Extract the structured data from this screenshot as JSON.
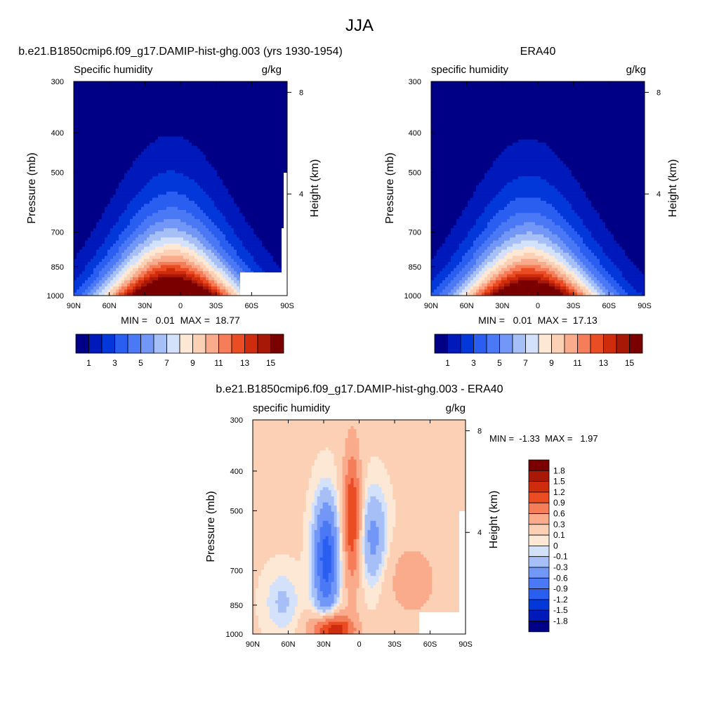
{
  "figure": {
    "title": "JJA"
  },
  "colors": {
    "abs_palette": [
      "#000086",
      "#0019bb",
      "#0237d9",
      "#2a5ef0",
      "#4b79f5",
      "#7297f6",
      "#a6bff7",
      "#d4e1fb",
      "#fde8d5",
      "#fbd0b4",
      "#f9ab8b",
      "#f57d59",
      "#ea4d23",
      "#cf2b0d",
      "#a81806",
      "#7a0000"
    ],
    "diff_palette": [
      "#000086",
      "#0019bb",
      "#0237d9",
      "#2a5ef0",
      "#4b79f5",
      "#7297f6",
      "#a6bff7",
      "#d4e1fb",
      "#fde8d5",
      "#fbd0b4",
      "#f9ab8b",
      "#f57d59",
      "#ea4d23",
      "#cf2b0d",
      "#a81806",
      "#7a0000"
    ]
  },
  "chart_data": [
    {
      "type": "heatmap",
      "title": "b.e21.B1850cmip6.f09_g17.DAMIP-hist-ghg.003 (yrs 1930-1954)",
      "field": "Specific humidity",
      "units": "g/kg",
      "ylabel": "Pressure (mb)",
      "y2label": "Height (km)",
      "xticks": [
        "90N",
        "60N",
        "30N",
        "0",
        "30S",
        "60S",
        "90S"
      ],
      "yticks": [
        "300",
        "400",
        "500",
        "700",
        "850",
        "1000"
      ],
      "y2ticks": [
        "8",
        "4"
      ],
      "stats": "MIN =   0.01  MAX =  18.77",
      "colorbar_labels": [
        "1",
        "3",
        "5",
        "7",
        "9",
        "11",
        "13",
        "15"
      ],
      "levels": [
        1,
        2,
        3,
        4,
        5,
        6,
        7,
        8,
        9,
        10,
        11,
        12,
        13,
        14,
        15
      ],
      "min": 0.01,
      "max": 18.77
    },
    {
      "type": "heatmap",
      "title": "ERA40",
      "field": "specific humidity",
      "units": "g/kg",
      "ylabel": "Pressure (mb)",
      "y2label": "Height (km)",
      "xticks": [
        "90N",
        "60N",
        "30N",
        "0",
        "30S",
        "60S",
        "90S"
      ],
      "yticks": [
        "300",
        "400",
        "500",
        "700",
        "850",
        "1000"
      ],
      "y2ticks": [
        "8",
        "4"
      ],
      "stats": "MIN =   0.01  MAX =  17.13",
      "colorbar_labels": [
        "1",
        "3",
        "5",
        "7",
        "9",
        "11",
        "13",
        "15"
      ],
      "levels": [
        1,
        2,
        3,
        4,
        5,
        6,
        7,
        8,
        9,
        10,
        11,
        12,
        13,
        14,
        15
      ],
      "min": 0.01,
      "max": 17.13
    },
    {
      "type": "heatmap",
      "title": "b.e21.B1850cmip6.f09_g17.DAMIP-hist-ghg.003 - ERA40",
      "field": "specific humidity",
      "units": "g/kg",
      "ylabel": "Pressure (mb)",
      "y2label": "Height (km)",
      "xticks": [
        "90N",
        "60N",
        "30N",
        "0",
        "30S",
        "60S",
        "90S"
      ],
      "yticks": [
        "300",
        "400",
        "500",
        "700",
        "850",
        "1000"
      ],
      "y2ticks": [
        "8",
        "4"
      ],
      "stats": "MIN =  -1.33  MAX =   1.97",
      "colorbar_labels": [
        "1.8",
        "1.5",
        "1.2",
        "0.9",
        "0.6",
        "0.3",
        "0.1",
        "0",
        "-0.1",
        "-0.3",
        "-0.6",
        "-0.9",
        "-1.2",
        "-1.5",
        "-1.8"
      ],
      "levels": [
        -1.8,
        -1.5,
        -1.2,
        -0.9,
        -0.6,
        -0.3,
        -0.1,
        0,
        0.1,
        0.3,
        0.6,
        0.9,
        1.2,
        1.5,
        1.8
      ],
      "min": -1.33,
      "max": 1.97
    }
  ]
}
